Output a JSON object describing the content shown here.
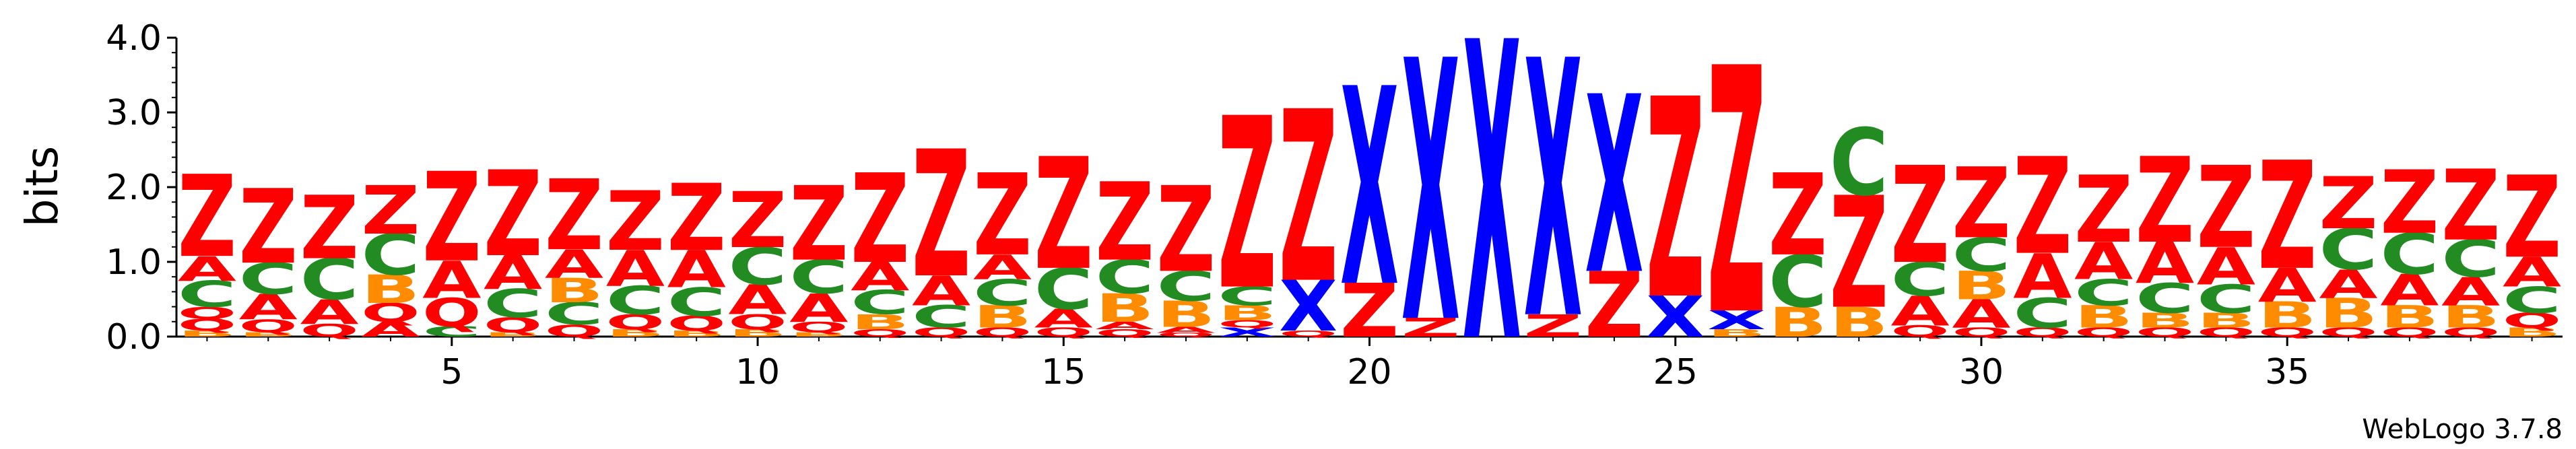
{
  "chart_data": {
    "type": "sequence-logo",
    "ylabel": "bits",
    "ylim": [
      0,
      4.0
    ],
    "y_ticks": [
      "0.0",
      "1.0",
      "2.0",
      "3.0",
      "4.0"
    ],
    "x_ticks": [
      "5",
      "10",
      "15",
      "20",
      "25",
      "30",
      "35"
    ],
    "footer": "WebLogo 3.7.8",
    "color_map": {
      "Z": "#ff0000",
      "A": "#ff0000",
      "Q": "#ff0000",
      "C": "#228b22",
      "B": "#ff8c00",
      "X": "#0000ff"
    },
    "positions": [
      {
        "pos": 1,
        "stack": [
          [
            "B",
            0.08
          ],
          [
            "Q",
            0.16
          ],
          [
            "Q",
            0.16
          ],
          [
            "C",
            0.35
          ],
          [
            "A",
            0.33
          ],
          [
            "Z",
            1.1
          ]
        ]
      },
      {
        "pos": 2,
        "stack": [
          [
            "B",
            0.06
          ],
          [
            "Q",
            0.17
          ],
          [
            "A",
            0.34
          ],
          [
            "C",
            0.42
          ],
          [
            "Z",
            1.0
          ]
        ]
      },
      {
        "pos": 3,
        "stack": [
          [
            "Q",
            0.17
          ],
          [
            "A",
            0.33
          ],
          [
            "C",
            0.55
          ],
          [
            "Z",
            0.85
          ]
        ]
      },
      {
        "pos": 4,
        "stack": [
          [
            "A",
            0.2
          ],
          [
            "Q",
            0.25
          ],
          [
            "B",
            0.38
          ],
          [
            "C",
            0.55
          ],
          [
            "Z",
            0.65
          ]
        ]
      },
      {
        "pos": 5,
        "stack": [
          [
            "C",
            0.14
          ],
          [
            "Q",
            0.38
          ],
          [
            "A",
            0.5
          ],
          [
            "Z",
            1.2
          ]
        ]
      },
      {
        "pos": 6,
        "stack": [
          [
            "B",
            0.06
          ],
          [
            "Q",
            0.2
          ],
          [
            "C",
            0.38
          ],
          [
            "A",
            0.45
          ],
          [
            "Z",
            1.15
          ]
        ]
      },
      {
        "pos": 7,
        "stack": [
          [
            "Q",
            0.16
          ],
          [
            "C",
            0.3
          ],
          [
            "B",
            0.33
          ],
          [
            "A",
            0.38
          ],
          [
            "Z",
            0.95
          ]
        ]
      },
      {
        "pos": 8,
        "stack": [
          [
            "B",
            0.1
          ],
          [
            "Q",
            0.2
          ],
          [
            "C",
            0.38
          ],
          [
            "A",
            0.48
          ],
          [
            "Z",
            0.8
          ]
        ]
      },
      {
        "pos": 9,
        "stack": [
          [
            "B",
            0.08
          ],
          [
            "Q",
            0.2
          ],
          [
            "C",
            0.38
          ],
          [
            "A",
            0.5
          ],
          [
            "Z",
            0.9
          ]
        ]
      },
      {
        "pos": 10,
        "stack": [
          [
            "B",
            0.1
          ],
          [
            "Q",
            0.2
          ],
          [
            "A",
            0.4
          ],
          [
            "C",
            0.5
          ],
          [
            "Z",
            0.75
          ]
        ]
      },
      {
        "pos": 11,
        "stack": [
          [
            "B",
            0.06
          ],
          [
            "Q",
            0.14
          ],
          [
            "A",
            0.38
          ],
          [
            "C",
            0.45
          ],
          [
            "Z",
            1.0
          ]
        ]
      },
      {
        "pos": 12,
        "stack": [
          [
            "Q",
            0.1
          ],
          [
            "B",
            0.2
          ],
          [
            "C",
            0.32
          ],
          [
            "A",
            0.38
          ],
          [
            "Z",
            1.2
          ]
        ]
      },
      {
        "pos": 13,
        "stack": [
          [
            "Q",
            0.12
          ],
          [
            "C",
            0.3
          ],
          [
            "A",
            0.4
          ],
          [
            "Z",
            1.7
          ]
        ]
      },
      {
        "pos": 14,
        "stack": [
          [
            "Q",
            0.12
          ],
          [
            "B",
            0.3
          ],
          [
            "C",
            0.35
          ],
          [
            "A",
            0.33
          ],
          [
            "Z",
            1.1
          ]
        ]
      },
      {
        "pos": 15,
        "stack": [
          [
            "Q",
            0.12
          ],
          [
            "A",
            0.25
          ],
          [
            "C",
            0.55
          ],
          [
            "Z",
            1.5
          ]
        ]
      },
      {
        "pos": 16,
        "stack": [
          [
            "Q",
            0.1
          ],
          [
            "A",
            0.1
          ],
          [
            "B",
            0.38
          ],
          [
            "C",
            0.45
          ],
          [
            "Z",
            1.05
          ]
        ]
      },
      {
        "pos": 17,
        "stack": [
          [
            "Q",
            0.05
          ],
          [
            "A",
            0.08
          ],
          [
            "B",
            0.35
          ],
          [
            "C",
            0.4
          ],
          [
            "Z",
            1.15
          ]
        ]
      },
      {
        "pos": 18,
        "stack": [
          [
            "X",
            0.12
          ],
          [
            "Q",
            0.1
          ],
          [
            "B",
            0.2
          ],
          [
            "C",
            0.25
          ],
          [
            "Z",
            2.3
          ]
        ]
      },
      {
        "pos": 19,
        "stack": [
          [
            "Q",
            0.08
          ],
          [
            "X",
            0.68
          ],
          [
            "Z",
            2.3
          ]
        ]
      },
      {
        "pos": 20,
        "stack": [
          [
            "Z",
            0.72
          ],
          [
            "X",
            2.65
          ]
        ]
      },
      {
        "pos": 21,
        "stack": [
          [
            "Z",
            0.25
          ],
          [
            "X",
            3.5
          ]
        ]
      },
      {
        "pos": 22,
        "stack": [
          [
            "X",
            4.0
          ]
        ]
      },
      {
        "pos": 23,
        "stack": [
          [
            "Z",
            0.3
          ],
          [
            "X",
            3.45
          ]
        ]
      },
      {
        "pos": 24,
        "stack": [
          [
            "Z",
            0.88
          ],
          [
            "X",
            2.38
          ]
        ]
      },
      {
        "pos": 25,
        "stack": [
          [
            "X",
            0.55
          ],
          [
            "Z",
            2.68
          ]
        ]
      },
      {
        "pos": 26,
        "stack": [
          [
            "B",
            0.1
          ],
          [
            "X",
            0.25
          ],
          [
            "Z",
            3.3
          ]
        ]
      },
      {
        "pos": 27,
        "stack": [
          [
            "B",
            0.4
          ],
          [
            "C",
            0.7
          ],
          [
            "Z",
            1.1
          ]
        ]
      },
      {
        "pos": 28,
        "stack": [
          [
            "B",
            0.4
          ],
          [
            "Z",
            1.5
          ],
          [
            "C",
            0.9
          ]
        ]
      },
      {
        "pos": 29,
        "stack": [
          [
            "Q",
            0.15
          ],
          [
            "A",
            0.4
          ],
          [
            "C",
            0.45
          ],
          [
            "Z",
            1.3
          ]
        ]
      },
      {
        "pos": 30,
        "stack": [
          [
            "Q",
            0.12
          ],
          [
            "A",
            0.38
          ],
          [
            "B",
            0.38
          ],
          [
            "C",
            0.45
          ],
          [
            "Z",
            0.95
          ]
        ]
      },
      {
        "pos": 31,
        "stack": [
          [
            "Q",
            0.12
          ],
          [
            "C",
            0.4
          ],
          [
            "A",
            0.6
          ],
          [
            "Z",
            1.3
          ]
        ]
      },
      {
        "pos": 32,
        "stack": [
          [
            "Q",
            0.12
          ],
          [
            "B",
            0.3
          ],
          [
            "C",
            0.35
          ],
          [
            "A",
            0.5
          ],
          [
            "Z",
            0.9
          ]
        ]
      },
      {
        "pos": 33,
        "stack": [
          [
            "Q",
            0.12
          ],
          [
            "B",
            0.2
          ],
          [
            "C",
            0.4
          ],
          [
            "A",
            0.55
          ],
          [
            "Z",
            1.15
          ]
        ]
      },
      {
        "pos": 34,
        "stack": [
          [
            "Q",
            0.12
          ],
          [
            "B",
            0.2
          ],
          [
            "C",
            0.38
          ],
          [
            "A",
            0.5
          ],
          [
            "Z",
            1.1
          ]
        ]
      },
      {
        "pos": 35,
        "stack": [
          [
            "Q",
            0.12
          ],
          [
            "B",
            0.35
          ],
          [
            "A",
            0.45
          ],
          [
            "Z",
            1.45
          ]
        ]
      },
      {
        "pos": 36,
        "stack": [
          [
            "Q",
            0.12
          ],
          [
            "B",
            0.4
          ],
          [
            "A",
            0.38
          ],
          [
            "C",
            0.55
          ],
          [
            "Z",
            0.7
          ]
        ]
      },
      {
        "pos": 37,
        "stack": [
          [
            "Q",
            0.12
          ],
          [
            "B",
            0.3
          ],
          [
            "A",
            0.42
          ],
          [
            "C",
            0.55
          ],
          [
            "Z",
            0.85
          ]
        ]
      },
      {
        "pos": 38,
        "stack": [
          [
            "Q",
            0.12
          ],
          [
            "B",
            0.3
          ],
          [
            "A",
            0.38
          ],
          [
            "C",
            0.5
          ],
          [
            "Z",
            0.95
          ]
        ]
      },
      {
        "pos": 39,
        "stack": [
          [
            "B",
            0.12
          ],
          [
            "Q",
            0.2
          ],
          [
            "C",
            0.35
          ],
          [
            "A",
            0.4
          ],
          [
            "Z",
            1.1
          ]
        ]
      }
    ]
  }
}
